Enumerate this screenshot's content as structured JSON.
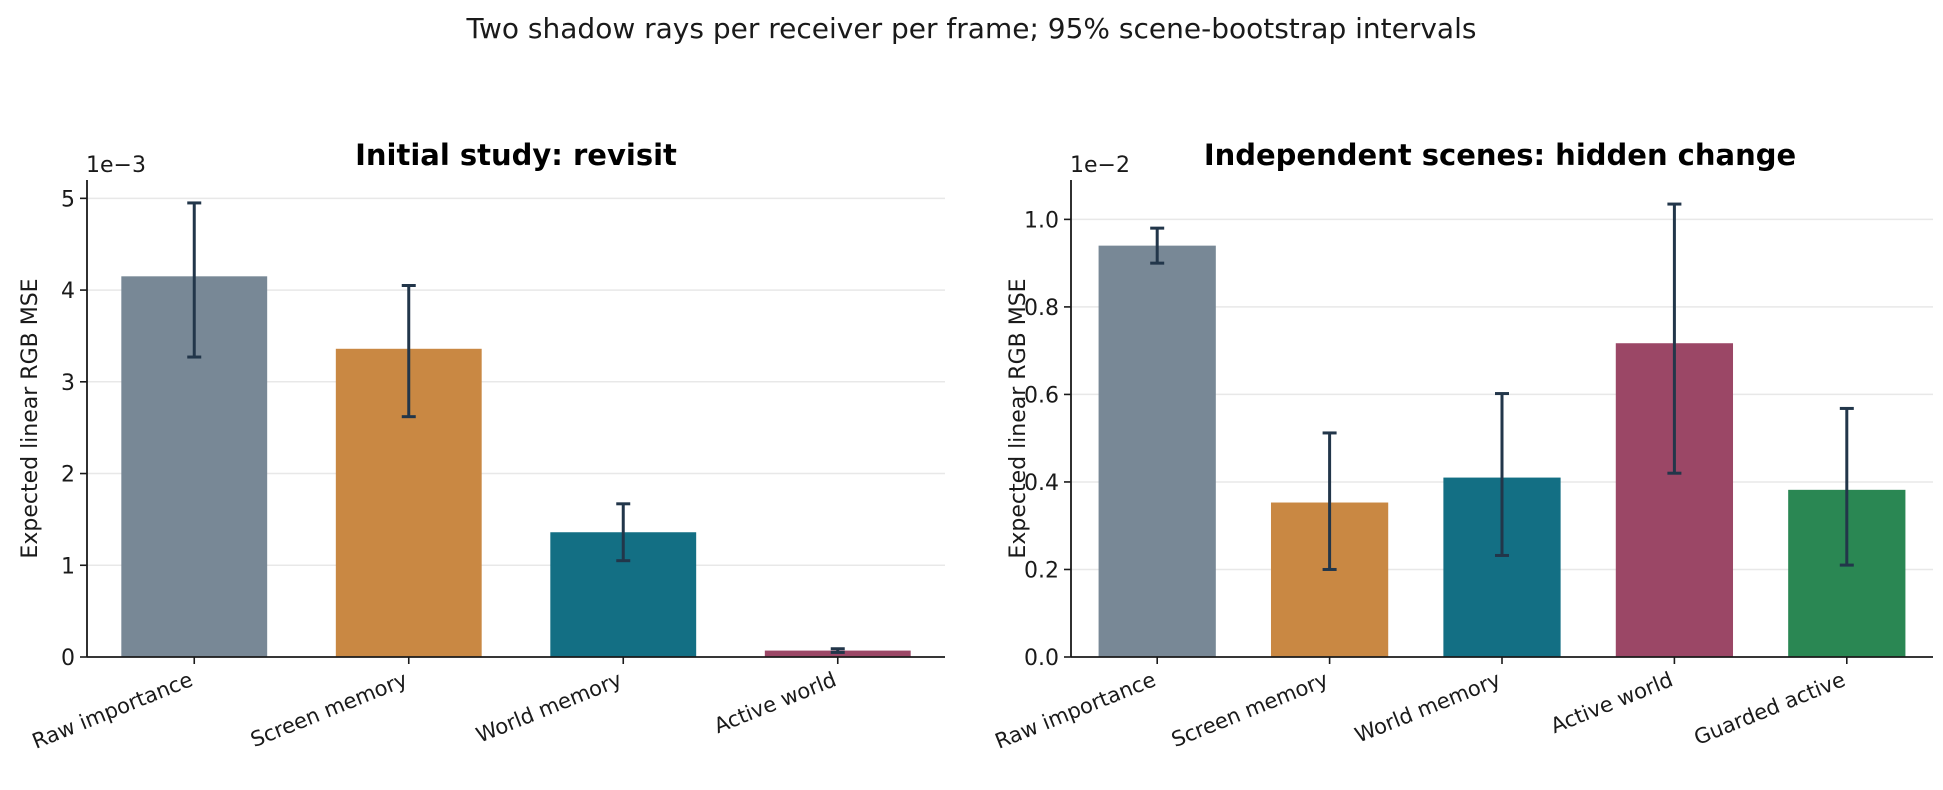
{
  "figure": {
    "suptitle": "Two shadow rays per receiver per frame; 95% scene-bootstrap intervals"
  },
  "colors": {
    "raw_importance": "#788896",
    "screen_memory": "#c98843",
    "world_memory": "#136f84",
    "active_world": "#9b4766",
    "guarded_active": "#2a8753",
    "error_bar": "#22364a",
    "grid": "#e8e8e8"
  },
  "chart_data": [
    {
      "type": "bar",
      "title": "Initial study: revisit",
      "ylabel": "Expected linear RGB MSE",
      "multiplier_label": "1e−3",
      "scale": 0.001,
      "ylim": [
        0,
        5.2
      ],
      "yticks": [
        0,
        1,
        2,
        3,
        4,
        5
      ],
      "grid": "y",
      "categories": [
        "Raw importance",
        "Screen memory",
        "World memory",
        "Active world"
      ],
      "color_keys": [
        "raw_importance",
        "screen_memory",
        "world_memory",
        "active_world"
      ],
      "values": [
        4.15,
        3.36,
        1.36,
        0.07
      ],
      "ci_low": [
        3.27,
        2.62,
        1.05,
        0.05
      ],
      "ci_high": [
        4.95,
        4.05,
        1.67,
        0.09
      ]
    },
    {
      "type": "bar",
      "title": "Independent scenes: hidden change",
      "ylabel": "Expected linear RGB MSE",
      "multiplier_label": "1e−2",
      "scale": 0.01,
      "ylim": [
        0,
        1.09
      ],
      "yticks": [
        0.0,
        0.2,
        0.4,
        0.6,
        0.8,
        1.0
      ],
      "grid": "y",
      "categories": [
        "Raw importance",
        "Screen memory",
        "World memory",
        "Active world",
        "Guarded active"
      ],
      "color_keys": [
        "raw_importance",
        "screen_memory",
        "world_memory",
        "active_world",
        "guarded_active"
      ],
      "values": [
        0.94,
        0.353,
        0.41,
        0.717,
        0.382
      ],
      "ci_low": [
        0.9,
        0.2,
        0.232,
        0.42,
        0.21
      ],
      "ci_high": [
        0.98,
        0.512,
        0.602,
        1.035,
        0.568
      ]
    }
  ]
}
